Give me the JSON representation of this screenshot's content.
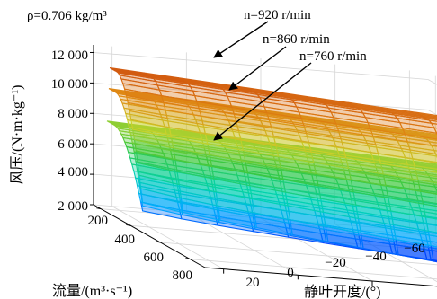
{
  "chart_data": {
    "type": "surface3d",
    "density_label": "ρ=0.706 kg/m³",
    "xlabel": "流量/(m³·s⁻¹)",
    "ylabel": "静叶开度/(°)",
    "zlabel": "风压/(N·m·kg⁻¹)",
    "x_ticks": [
      "200",
      "400",
      "600",
      "800"
    ],
    "y_ticks": [
      "20",
      "0",
      "−20",
      "−40",
      "−60"
    ],
    "z_ticks": [
      "2 000",
      "4 000",
      "6 000",
      "8 000",
      "10 000",
      "12 000"
    ],
    "xlim": [
      150,
      900
    ],
    "ylim": [
      -65,
      25
    ],
    "zlim": [
      2000,
      12500
    ],
    "series": [
      {
        "name": "n=920 r/min",
        "speed": 920,
        "shutoff_pressure": 11600
      },
      {
        "name": "n=860 r/min",
        "speed": 860,
        "shutoff_pressure": 10200
      },
      {
        "name": "n=760 r/min",
        "speed": 760,
        "shutoff_pressure": 8000
      }
    ],
    "grid": true,
    "colormap": [
      "#0000ff",
      "#00aaff",
      "#00d4b0",
      "#3cc83c",
      "#c8d22d",
      "#e08a14",
      "#d25a10"
    ]
  }
}
